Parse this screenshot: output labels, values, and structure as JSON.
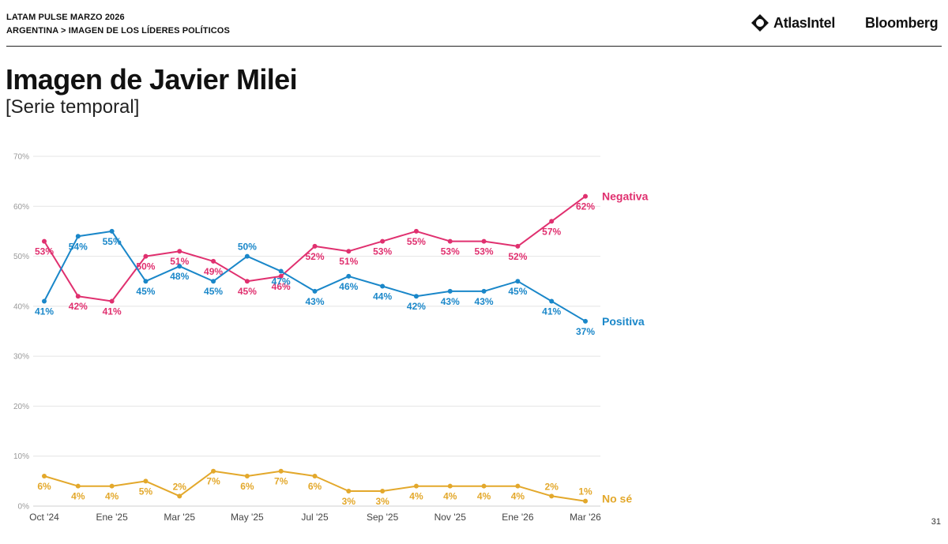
{
  "header": {
    "line1": "LATAM PULSE MARZO 2026",
    "line2": "ARGENTINA > IMAGEN DE LOS LÍDERES POLÍTICOS",
    "logo_atlas": "AtlasIntel",
    "logo_bloomberg": "Bloomberg"
  },
  "title": "Imagen de Javier Milei",
  "subtitle": "[Serie temporal]",
  "page_number": "31",
  "colors": {
    "negativa": "#e0306f",
    "positiva": "#1a87c9",
    "nose": "#e3a82b",
    "grid": "#e4e4e4"
  },
  "chart_data": {
    "type": "line",
    "x_count": 17,
    "x_tick_labels": [
      {
        "i": 0,
        "label": "Oct '24"
      },
      {
        "i": 2,
        "label": "Ene '25"
      },
      {
        "i": 4,
        "label": "Mar '25"
      },
      {
        "i": 6,
        "label": "May '25"
      },
      {
        "i": 8,
        "label": "Jul '25"
      },
      {
        "i": 10,
        "label": "Sep '25"
      },
      {
        "i": 12,
        "label": "Nov '25"
      },
      {
        "i": 14,
        "label": "Ene '26"
      },
      {
        "i": 16,
        "label": "Mar '26"
      }
    ],
    "y_ticks": [
      "0%",
      "10%",
      "20%",
      "30%",
      "40%",
      "50%",
      "60%",
      "70%"
    ],
    "ylim": [
      0,
      70
    ],
    "series": [
      {
        "key": "negativa",
        "name": "Negativa",
        "values": [
          53,
          42,
          41,
          50,
          51,
          49,
          45,
          46,
          52,
          51,
          53,
          55,
          53,
          53,
          52,
          57,
          62
        ],
        "labels": [
          "53%",
          "42%",
          "41%",
          "50%",
          "51%",
          "49%",
          "45%",
          "46%",
          "52%",
          "51%",
          "53%",
          "55%",
          "53%",
          "53%",
          "52%",
          "57%",
          "62%"
        ]
      },
      {
        "key": "positiva",
        "name": "Positiva",
        "values": [
          41,
          54,
          55,
          45,
          48,
          45,
          50,
          47,
          43,
          46,
          44,
          42,
          43,
          43,
          45,
          41,
          37
        ],
        "labels": [
          "41%",
          "54%",
          "55%",
          "45%",
          "48%",
          "45%",
          "50%",
          "47%",
          "43%",
          "46%",
          "44%",
          "42%",
          "43%",
          "43%",
          "45%",
          "41%",
          "37%"
        ]
      },
      {
        "key": "nose",
        "name": "No sé",
        "values": [
          6,
          4,
          4,
          5,
          2,
          7,
          6,
          7,
          6,
          3,
          3,
          4,
          4,
          4,
          4,
          2,
          1
        ],
        "labels": [
          "6%",
          "4%",
          "4%",
          "5%",
          "2%",
          "7%",
          "6%",
          "7%",
          "6%",
          "3%",
          "3%",
          "4%",
          "4%",
          "4%",
          "4%",
          "2%",
          "1%"
        ]
      }
    ]
  }
}
